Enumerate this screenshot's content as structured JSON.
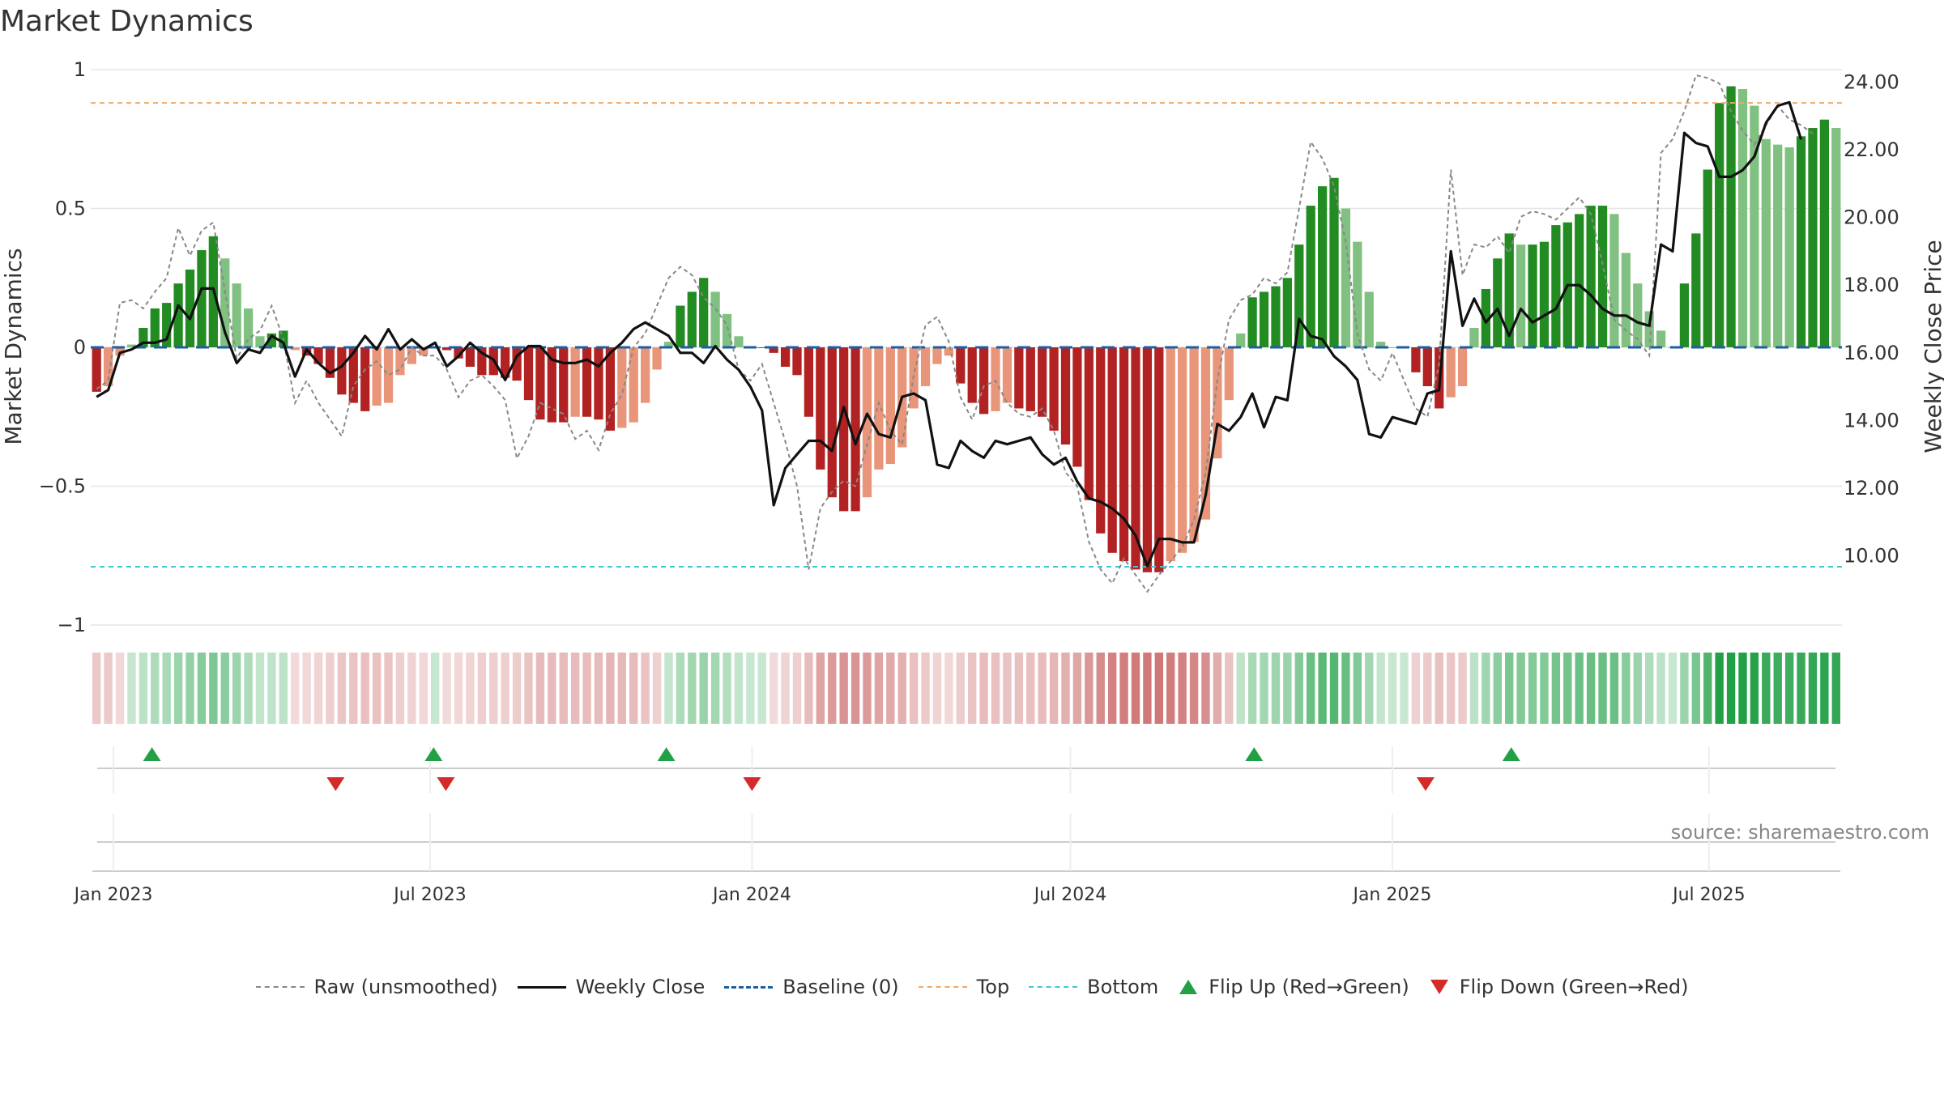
{
  "title": "Market Dynamics",
  "source": "source: sharemaestro.com",
  "legend": {
    "raw": "Raw (unsmoothed)",
    "close": "Weekly Close",
    "baseline": "Baseline (0)",
    "top": "Top",
    "bottom": "Bottom",
    "flip_up": "Flip Up (Red→Green)",
    "flip_down": "Flip Down (Green→Red)"
  },
  "colors": {
    "green_dark": "#228b22",
    "green_light": "#80c080",
    "red_dark": "#b22222",
    "red_light": "#e8957a",
    "close_line": "#111111",
    "raw_line": "#888888",
    "baseline": "#1f5fa0",
    "top_line": "#f0a868",
    "bottom_line": "#3cc8d8",
    "flip_up": "#22a046",
    "flip_down": "#d42a2a"
  },
  "chart_data": {
    "type": "bar",
    "title": "Market Dynamics",
    "ylabel": "Market Dynamics",
    "y2label": "Weekly Close Price",
    "ylim": [
      -1,
      1
    ],
    "y2lim": [
      8.7,
      24.2
    ],
    "yticks": [
      "1",
      "0.5",
      "0",
      "−0.5",
      "−1"
    ],
    "y2ticks": [
      "24.00",
      "22.00",
      "20.00",
      "18.00",
      "16.00",
      "14.00",
      "12.00",
      "10.00"
    ],
    "x_start": "2022-12-19",
    "x_end": "2025-09-15",
    "xticks": [
      {
        "date": "2023-01-01",
        "label": "Jan 2023"
      },
      {
        "date": "2023-07-01",
        "label": "Jul 2023"
      },
      {
        "date": "2024-01-01",
        "label": "Jan 2024"
      },
      {
        "date": "2024-07-01",
        "label": "Jul 2024"
      },
      {
        "date": "2025-01-01",
        "label": "Jan 2025"
      },
      {
        "date": "2025-07-01",
        "label": "Jul 2025"
      }
    ],
    "top_level": 0.88,
    "bottom_level": -0.79,
    "baseline_level": 0,
    "grid": true,
    "legend_position": "bottom",
    "series": [
      {
        "name": "Market Dynamics",
        "values": [
          -0.16,
          -0.14,
          -0.03,
          0.01,
          0.07,
          0.14,
          0.16,
          0.23,
          0.28,
          0.35,
          0.4,
          0.32,
          0.23,
          0.14,
          0.04,
          0.05,
          0.06,
          -0.01,
          -0.03,
          -0.06,
          -0.11,
          -0.17,
          -0.2,
          -0.23,
          -0.21,
          -0.2,
          -0.1,
          -0.06,
          -0.03,
          0.0,
          -0.01,
          -0.04,
          -0.07,
          -0.1,
          -0.1,
          -0.11,
          -0.12,
          -0.19,
          -0.26,
          -0.27,
          -0.27,
          -0.25,
          -0.25,
          -0.26,
          -0.3,
          -0.29,
          -0.27,
          -0.2,
          -0.08,
          0.02,
          0.15,
          0.2,
          0.25,
          0.2,
          0.12,
          0.04,
          0.0,
          0.0,
          -0.02,
          -0.07,
          -0.1,
          -0.25,
          -0.44,
          -0.54,
          -0.59,
          -0.59,
          -0.54,
          -0.44,
          -0.42,
          -0.36,
          -0.22,
          -0.14,
          -0.06,
          -0.03,
          -0.13,
          -0.2,
          -0.24,
          -0.23,
          -0.2,
          -0.22,
          -0.23,
          -0.25,
          -0.3,
          -0.35,
          -0.43,
          -0.55,
          -0.67,
          -0.74,
          -0.77,
          -0.8,
          -0.81,
          -0.81,
          -0.77,
          -0.74,
          -0.7,
          -0.62,
          -0.4,
          -0.19,
          0.05,
          0.18,
          0.2,
          0.22,
          0.25,
          0.37,
          0.51,
          0.58,
          0.61,
          0.5,
          0.38,
          0.2,
          0.02,
          0.0,
          0.0,
          -0.09,
          -0.14,
          -0.22,
          -0.18,
          -0.14,
          0.07,
          0.21,
          0.32,
          0.41,
          0.37,
          0.37,
          0.38,
          0.44,
          0.45,
          0.48,
          0.51,
          0.51,
          0.48,
          0.34,
          0.23,
          0.13,
          0.06,
          0.0,
          0.23,
          0.41,
          0.64,
          0.88,
          0.94,
          0.93,
          0.87,
          0.75,
          0.73,
          0.72,
          0.76,
          0.79,
          0.82,
          0.79
        ]
      },
      {
        "name": "Raw (unsmoothed)",
        "values": [
          -0.15,
          -0.12,
          0.16,
          0.17,
          0.14,
          0.2,
          0.25,
          0.43,
          0.33,
          0.42,
          0.45,
          0.2,
          -0.04,
          0.03,
          0.06,
          0.15,
          0.03,
          -0.2,
          -0.12,
          -0.2,
          -0.26,
          -0.32,
          -0.14,
          -0.08,
          -0.05,
          -0.1,
          -0.08,
          0.0,
          -0.03,
          -0.03,
          -0.08,
          -0.18,
          -0.12,
          -0.1,
          -0.14,
          -0.19,
          -0.4,
          -0.32,
          -0.2,
          -0.22,
          -0.24,
          -0.33,
          -0.3,
          -0.37,
          -0.24,
          -0.17,
          0.0,
          0.05,
          0.15,
          0.25,
          0.29,
          0.26,
          0.18,
          0.14,
          0.08,
          -0.08,
          -0.12,
          -0.06,
          -0.2,
          -0.34,
          -0.5,
          -0.8,
          -0.58,
          -0.52,
          -0.48,
          -0.5,
          -0.35,
          -0.2,
          -0.3,
          -0.35,
          -0.1,
          0.08,
          0.11,
          0.02,
          -0.18,
          -0.26,
          -0.14,
          -0.12,
          -0.2,
          -0.24,
          -0.25,
          -0.22,
          -0.3,
          -0.45,
          -0.5,
          -0.7,
          -0.8,
          -0.85,
          -0.76,
          -0.82,
          -0.88,
          -0.82,
          -0.77,
          -0.72,
          -0.62,
          -0.45,
          -0.12,
          0.1,
          0.17,
          0.19,
          0.25,
          0.23,
          0.27,
          0.5,
          0.74,
          0.68,
          0.58,
          0.38,
          0.05,
          -0.08,
          -0.12,
          -0.02,
          -0.12,
          -0.22,
          -0.25,
          -0.06,
          0.64,
          0.26,
          0.37,
          0.36,
          0.4,
          0.34,
          0.47,
          0.49,
          0.48,
          0.46,
          0.5,
          0.54,
          0.48,
          0.3,
          0.1,
          0.06,
          0.03,
          -0.03,
          0.7,
          0.75,
          0.85,
          0.98,
          0.97,
          0.95,
          0.85,
          0.78,
          0.73,
          0.8,
          0.87,
          0.82,
          0.8,
          0.77
        ]
      },
      {
        "name": "Weekly Close",
        "values": [
          14.7,
          14.9,
          16.0,
          16.1,
          16.3,
          16.3,
          16.4,
          17.4,
          17.0,
          17.9,
          17.9,
          16.6,
          15.7,
          16.1,
          16.0,
          16.5,
          16.3,
          15.3,
          16.1,
          15.7,
          15.4,
          15.6,
          16.0,
          16.5,
          16.1,
          16.7,
          16.1,
          16.4,
          16.1,
          16.3,
          15.6,
          15.9,
          16.3,
          16.0,
          15.8,
          15.2,
          15.9,
          16.2,
          16.2,
          15.8,
          15.7,
          15.7,
          15.8,
          15.6,
          16.0,
          16.3,
          16.7,
          16.9,
          16.7,
          16.5,
          16.0,
          16.0,
          15.7,
          16.2,
          15.8,
          15.5,
          15.0,
          14.3,
          11.5,
          12.6,
          13.0,
          13.4,
          13.4,
          13.1,
          14.4,
          13.3,
          14.2,
          13.6,
          13.5,
          14.7,
          14.8,
          14.6,
          12.7,
          12.6,
          13.4,
          13.1,
          12.9,
          13.4,
          13.3,
          13.4,
          13.5,
          13.0,
          12.7,
          12.9,
          12.2,
          11.7,
          11.6,
          11.4,
          11.1,
          10.6,
          9.7,
          10.5,
          10.5,
          10.4,
          10.4,
          11.8,
          13.9,
          13.7,
          14.1,
          14.8,
          13.8,
          14.7,
          14.6,
          17.0,
          16.5,
          16.4,
          15.9,
          15.6,
          15.2,
          13.6,
          13.5,
          14.1,
          14.0,
          13.9,
          14.8,
          14.9,
          19.0,
          16.8,
          17.6,
          16.9,
          17.3,
          16.5,
          17.3,
          16.9,
          17.1,
          17.3,
          18.0,
          18.0,
          17.7,
          17.3,
          17.1,
          17.1,
          16.9,
          16.8,
          19.2,
          19.0,
          22.5,
          22.2,
          22.1,
          21.2,
          21.2,
          21.4,
          21.8,
          22.8,
          23.3,
          23.4,
          22.3
        ]
      }
    ],
    "flips_up": [
      "2023-01-23",
      "2023-07-03",
      "2023-11-13",
      "2024-10-14",
      "2025-03-10"
    ],
    "flips_down": [
      "2023-05-08",
      "2023-07-10",
      "2024-01-01",
      "2025-01-20"
    ]
  }
}
